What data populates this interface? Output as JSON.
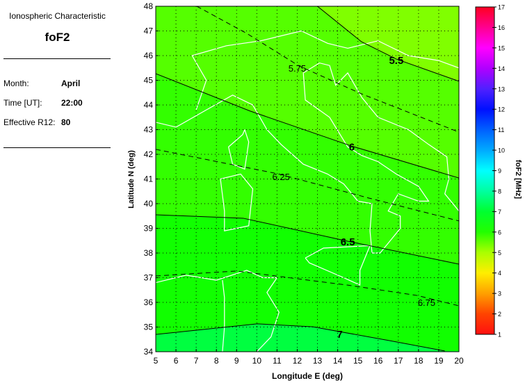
{
  "panel": {
    "title": "Ionospheric Characteristic",
    "characteristic": "foF2",
    "fields": [
      {
        "label": "Month:",
        "value": "April"
      },
      {
        "label": "Time [UT]:",
        "value": "22:00"
      },
      {
        "label": "Effective R12:",
        "value": "80"
      }
    ]
  },
  "chart_data": {
    "type": "contour",
    "xlabel": "Longitude E (deg)",
    "ylabel": "Latitude N (deg)",
    "xlim": [
      5,
      20
    ],
    "ylim": [
      34,
      48
    ],
    "xticks": [
      "5",
      "6",
      "7",
      "8",
      "9",
      "10",
      "11",
      "12",
      "13",
      "14",
      "15",
      "16",
      "17",
      "18",
      "19",
      "20"
    ],
    "yticks": [
      "34",
      "35",
      "36",
      "37",
      "38",
      "39",
      "40",
      "41",
      "42",
      "43",
      "44",
      "45",
      "46",
      "47",
      "48"
    ],
    "grid": true,
    "grid_style": "dotted",
    "coastlines": true,
    "coastline_color": "#ffffff",
    "contours": [
      {
        "level": 5.5,
        "label": "5.5",
        "style": "solid",
        "label_at": [
          16.9,
          45.8
        ],
        "points": [
          [
            13.0,
            48
          ],
          [
            15.18,
            46.56
          ],
          [
            16.9,
            45.86
          ],
          [
            20,
            44.96
          ]
        ]
      },
      {
        "level": 5.75,
        "label": "5.75",
        "style": "dashed",
        "label_at": [
          12.0,
          45.5
        ],
        "points": [
          [
            7.03,
            48
          ],
          [
            9.5,
            46.9
          ],
          [
            12.09,
            45.58
          ],
          [
            15.18,
            44.45
          ],
          [
            20,
            42.9
          ]
        ]
      },
      {
        "level": 6,
        "label": "6",
        "style": "solid",
        "label_at": [
          14.7,
          42.3
        ],
        "points": [
          [
            5,
            45.27
          ],
          [
            9.68,
            43.75
          ],
          [
            14.67,
            42.34
          ],
          [
            20,
            41.04
          ]
        ]
      },
      {
        "level": 6.25,
        "label": "6.25",
        "style": "dashed",
        "label_at": [
          11.2,
          41.1
        ],
        "points": [
          [
            5,
            42.2
          ],
          [
            11.05,
            41.21
          ],
          [
            15.53,
            40.23
          ],
          [
            20,
            39.3
          ]
        ]
      },
      {
        "level": 6.5,
        "label": "6.5",
        "style": "solid",
        "label_at": [
          14.5,
          38.45
        ],
        "points": [
          [
            5,
            39.55
          ],
          [
            9.33,
            39.41
          ],
          [
            14.49,
            38.48
          ],
          [
            20,
            37.55
          ]
        ]
      },
      {
        "level": 6.75,
        "label": "6.75",
        "style": "dashed",
        "label_at": [
          18.4,
          36.0
        ],
        "points": [
          [
            5,
            37.07
          ],
          [
            8.99,
            37.27
          ],
          [
            14.49,
            36.7
          ],
          [
            17.93,
            36.28
          ],
          [
            20,
            35.86
          ]
        ]
      },
      {
        "level": 7,
        "label": "7",
        "style": "solid",
        "label_at": [
          14.1,
          34.7
        ],
        "points": [
          [
            5,
            34.7
          ],
          [
            10.02,
            35.13
          ],
          [
            12.77,
            35.01
          ],
          [
            16.56,
            34.45
          ],
          [
            19.3,
            34.03
          ]
        ]
      }
    ],
    "region_colors": {
      "above_5.5": "#80ff00",
      "5.5_to_6": "#55ff00",
      "6_to_6.5": "#33ff00",
      "6.5_to_7": "#11ff00",
      "below_7": "#00ff40"
    },
    "colorbar": {
      "label": "foF2 [MHz]",
      "range": [
        1,
        17
      ],
      "ticks": [
        "1",
        "2",
        "3",
        "4",
        "5",
        "6",
        "7",
        "8",
        "9",
        "10",
        "11",
        "12",
        "13",
        "14",
        "15",
        "16",
        "17"
      ],
      "colors": [
        "#ff1010",
        "#ff4400",
        "#ffa000",
        "#ffee00",
        "#aaff00",
        "#22ff00",
        "#00ff30",
        "#00ffa0",
        "#00ffff",
        "#00aaff",
        "#0060ff",
        "#0010ff",
        "#5020ff",
        "#b000ff",
        "#ff00ff",
        "#ff0090",
        "#ff0020"
      ]
    }
  }
}
